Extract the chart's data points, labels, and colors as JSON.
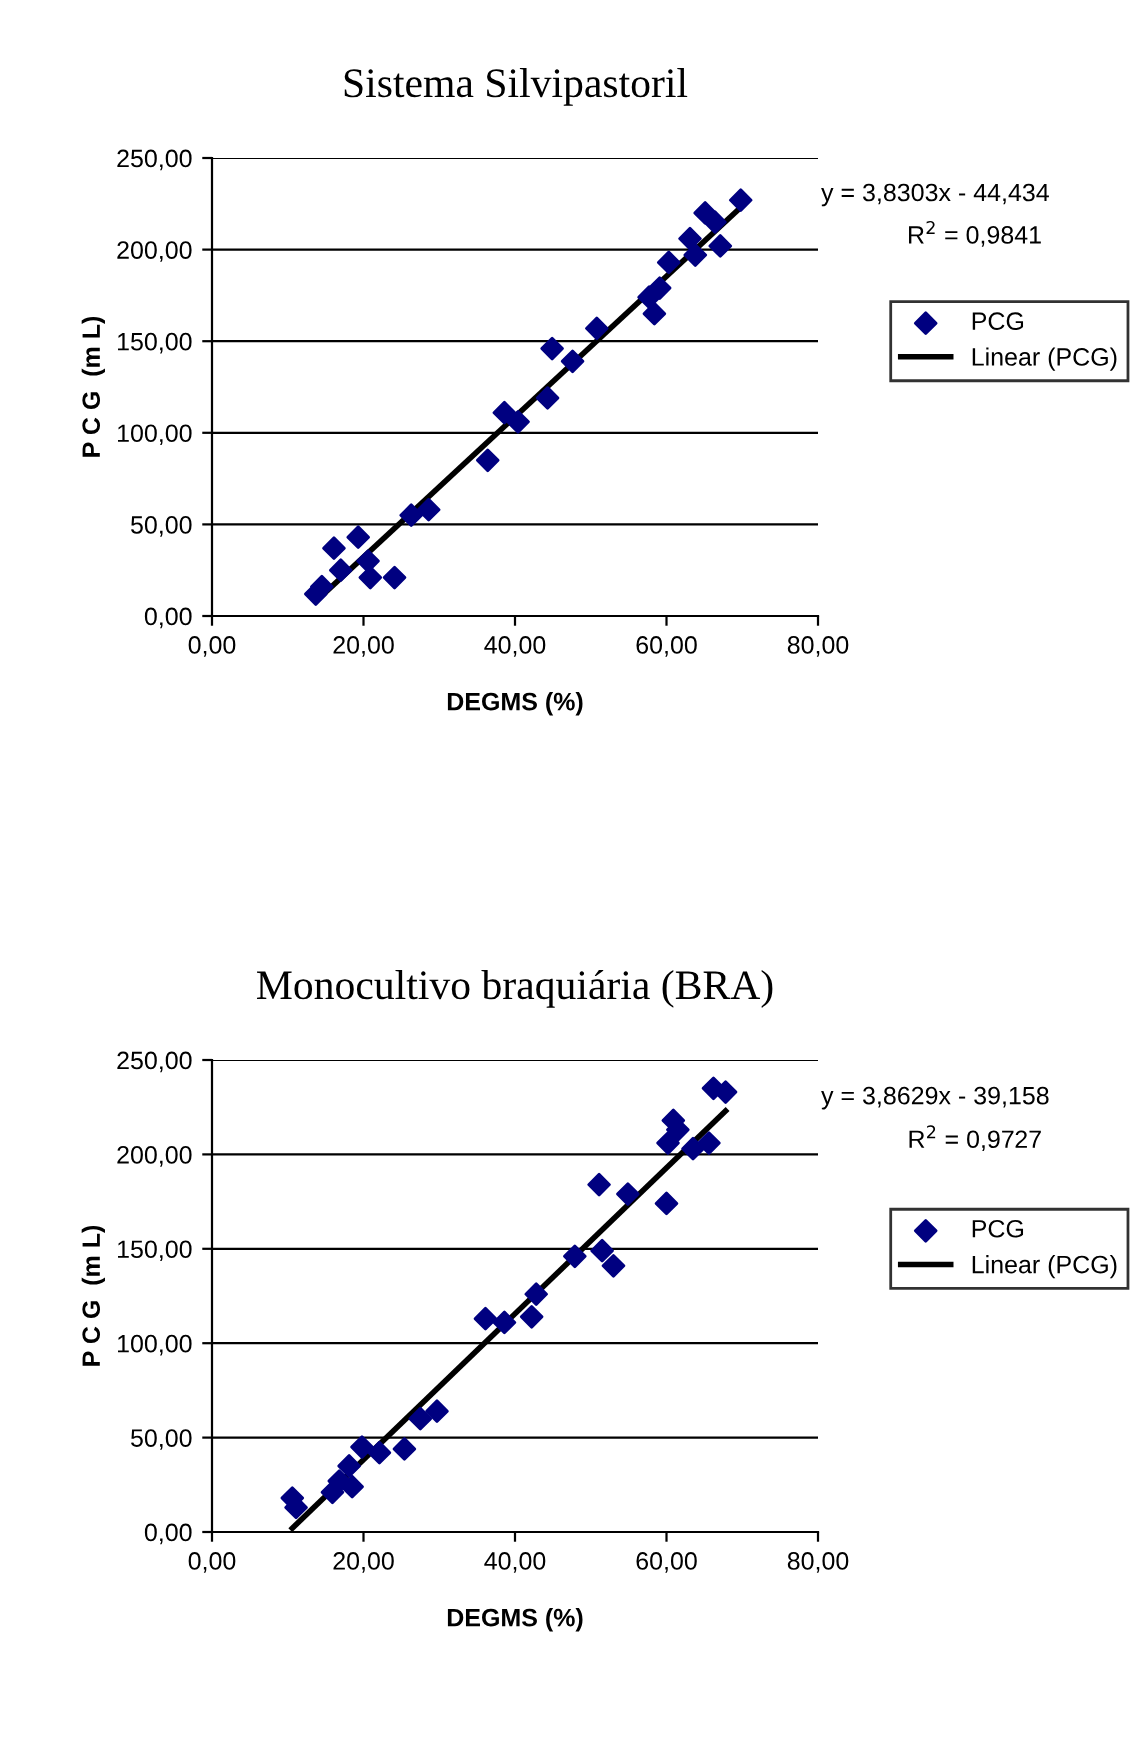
{
  "chart_data": [
    {
      "type": "scatter",
      "title": "Sistema Silvipastoril",
      "xlabel": "DEGMS (%)",
      "ylabel": "P C G  (m L)",
      "xlim": [
        0,
        80
      ],
      "xticks": [
        {
          "value": 0,
          "label": "0,00"
        },
        {
          "value": 20,
          "label": "20,00"
        },
        {
          "value": 40,
          "label": "40,00"
        },
        {
          "value": 60,
          "label": "60,00"
        },
        {
          "value": 80,
          "label": "80,00"
        }
      ],
      "ylim": [
        0,
        250
      ],
      "yticks": [
        {
          "value": 0,
          "label": "0,00"
        },
        {
          "value": 50,
          "label": "50,00"
        },
        {
          "value": 100,
          "label": "100,00"
        },
        {
          "value": 150,
          "label": "150,00"
        },
        {
          "value": 200,
          "label": "200,00"
        },
        {
          "value": 250,
          "label": "250,00"
        }
      ],
      "grid": "y",
      "legend": "right",
      "marker": "diamond",
      "annotations": [
        "y = 3,8303x - 44,434",
        "R$^{2}$ = 0,9841"
      ],
      "series": [
        {
          "name": "PCG",
          "color": "#000080",
          "x": [
            13.7,
            14.5,
            16.1,
            17.0,
            19.3,
            20.6,
            20.9,
            24.1,
            26.3,
            28.6,
            36.4,
            38.6,
            40.4,
            44.3,
            44.9,
            47.6,
            50.8,
            57.7,
            58.4,
            59.1,
            60.3,
            63.1,
            63.8,
            65.1,
            66.4,
            67.1,
            69.8
          ],
          "values": [
            12,
            16,
            37,
            25,
            43,
            30,
            21,
            21,
            55,
            58,
            85,
            111,
            106,
            119,
            146,
            139,
            157,
            174,
            165,
            179,
            193,
            206,
            197,
            220,
            215,
            202,
            227
          ]
        },
        {
          "name": "Linear (PCG)",
          "type": "line",
          "marker": "none",
          "color": "#000000",
          "x": [
            13.7,
            69.8
          ],
          "values": [
            8,
            223
          ]
        }
      ]
    },
    {
      "type": "scatter",
      "title": "Monocultivo braquiária (BRA)",
      "xlabel": "DEGMS (%)",
      "ylabel": "P C G  (m L)",
      "xlim": [
        0,
        80
      ],
      "xticks": [
        {
          "value": 0,
          "label": "0,00"
        },
        {
          "value": 20,
          "label": "20,00"
        },
        {
          "value": 40,
          "label": "40,00"
        },
        {
          "value": 60,
          "label": "60,00"
        },
        {
          "value": 80,
          "label": "80,00"
        }
      ],
      "ylim": [
        0,
        250
      ],
      "yticks": [
        {
          "value": 0,
          "label": "0,00"
        },
        {
          "value": 50,
          "label": "50,00"
        },
        {
          "value": 100,
          "label": "100,00"
        },
        {
          "value": 150,
          "label": "150,00"
        },
        {
          "value": 200,
          "label": "200,00"
        },
        {
          "value": 250,
          "label": "250,00"
        }
      ],
      "grid": "y",
      "legend": "right",
      "marker": "diamond",
      "annotations": [
        "y = 3,8629x - 39,158",
        "R$^{2}$ = 0,9727"
      ],
      "series": [
        {
          "name": "PCG",
          "color": "#000080",
          "x": [
            10.6,
            11.1,
            15.9,
            16.8,
            18.1,
            18.5,
            19.8,
            22.1,
            25.4,
            27.5,
            29.7,
            36.1,
            38.6,
            42.2,
            42.8,
            47.9,
            51.1,
            51.5,
            53.0,
            54.9,
            60.0,
            60.2,
            60.9,
            61.5,
            63.5,
            65.6,
            66.2,
            67.8
          ],
          "values": [
            18,
            13,
            21,
            27,
            35,
            24,
            45,
            42,
            44,
            60,
            64,
            113,
            111,
            114,
            126,
            146,
            184,
            149,
            141,
            179,
            174,
            206,
            218,
            213,
            203,
            206,
            235,
            233
          ]
        },
        {
          "name": "Linear (PCG)",
          "type": "line",
          "marker": "none",
          "color": "#000000",
          "x": [
            10.6,
            67.8
          ],
          "values": [
            2,
            223
          ]
        }
      ]
    }
  ]
}
